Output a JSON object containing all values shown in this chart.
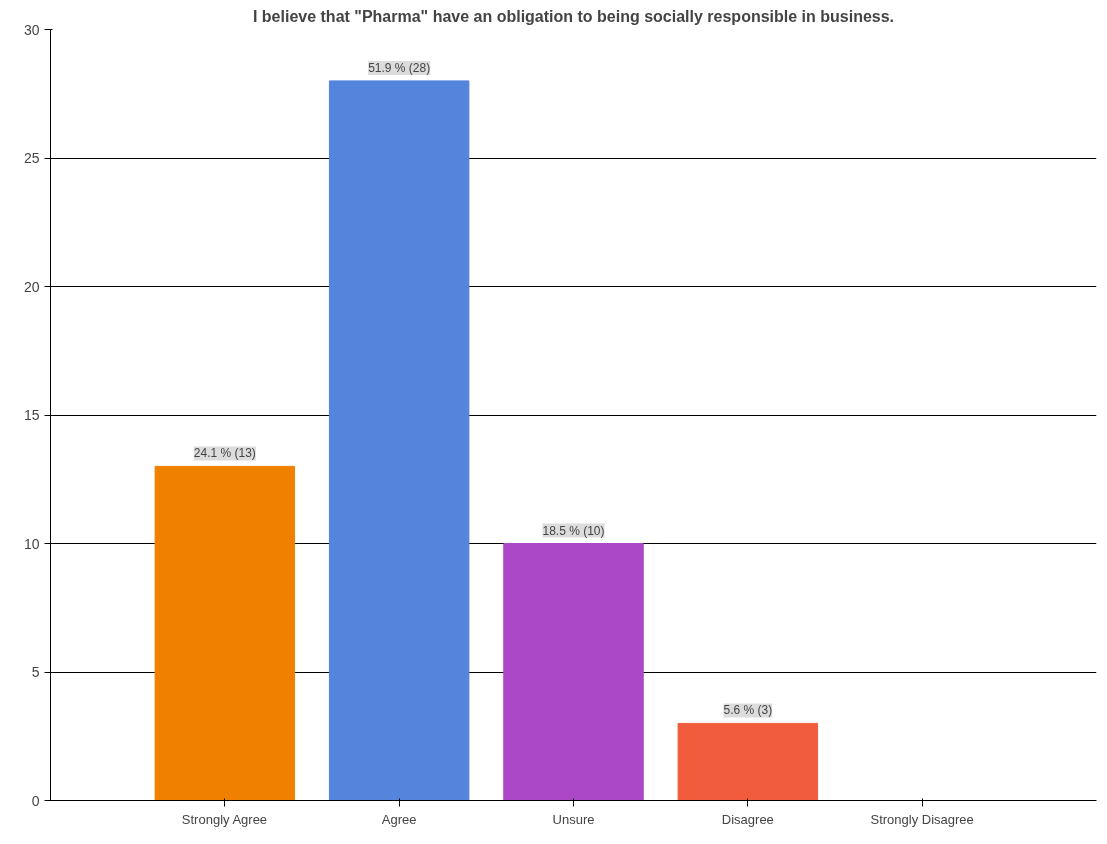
{
  "chart_data": {
    "type": "bar",
    "title": "I believe that \"Pharma\" have an obligation to being socially responsible in business.",
    "categories": [
      "Strongly Agree",
      "Agree",
      "Unsure",
      "Disagree",
      "Strongly Disagree"
    ],
    "values": [
      13,
      28,
      10,
      3,
      0
    ],
    "colors": [
      "#f08000",
      "#5584dc",
      "#aa48c8",
      "#f05c3c",
      "#888888"
    ],
    "value_labels": [
      "24.1 % (13)",
      "51.9 % (28)",
      "18.5 % (10)",
      "5.6 % (3)",
      null
    ],
    "ylim": [
      0,
      30
    ],
    "yticks": [
      0,
      5,
      10,
      15,
      20,
      25,
      30
    ],
    "grid": "y"
  }
}
